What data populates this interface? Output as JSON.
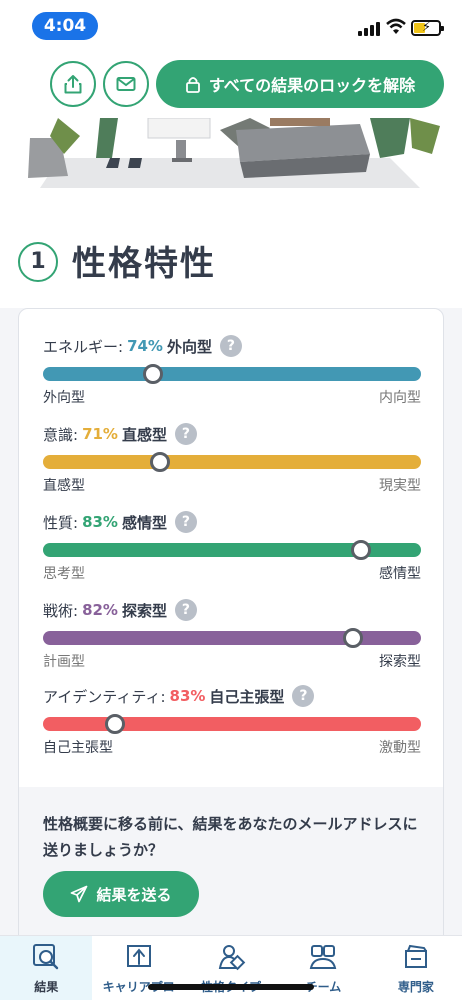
{
  "status_bar": {
    "time": "4:04"
  },
  "header": {
    "unlock_label": "すべての結果のロックを解除"
  },
  "section": {
    "number": "1",
    "title": "性格特性"
  },
  "traits": [
    {
      "label": "エネルギー:",
      "percent": "74%",
      "type": "外向型",
      "left": "外向型",
      "right": "内向型",
      "color": "#4298b4",
      "position": 0.29,
      "strong_side": "left"
    },
    {
      "label": "意識:",
      "percent": "71%",
      "type": "直感型",
      "left": "直感型",
      "right": "現実型",
      "color": "#e4ae3a",
      "position": 0.31,
      "strong_side": "left"
    },
    {
      "label": "性質:",
      "percent": "83%",
      "type": "感情型",
      "left": "思考型",
      "right": "感情型",
      "color": "#33a474",
      "position": 0.84,
      "strong_side": "right"
    },
    {
      "label": "戦術:",
      "percent": "82%",
      "type": "探索型",
      "left": "計画型",
      "right": "探索型",
      "color": "#88619a",
      "position": 0.82,
      "strong_side": "right"
    },
    {
      "label": "アイデンティティ:",
      "percent": "83%",
      "type": "自己主張型",
      "left": "自己主張型",
      "right": "激動型",
      "color": "#f25e62",
      "position": 0.19,
      "strong_side": "left"
    }
  ],
  "email": {
    "prompt": "性格概要に移る前に、結果をあなたのメールアドレスに送りましょうか？",
    "send_label": "結果を送る"
  },
  "nav": [
    {
      "label": "結果",
      "icon": "results-icon",
      "active": true
    },
    {
      "label": "キャリアプロ",
      "icon": "career-icon",
      "active": false
    },
    {
      "label": "性格タイプ",
      "icon": "personality-types-icon",
      "active": false
    },
    {
      "label": "チーム",
      "icon": "team-icon",
      "active": false
    },
    {
      "label": "専門家",
      "icon": "experts-icon",
      "active": false
    }
  ],
  "help_glyph": "?"
}
